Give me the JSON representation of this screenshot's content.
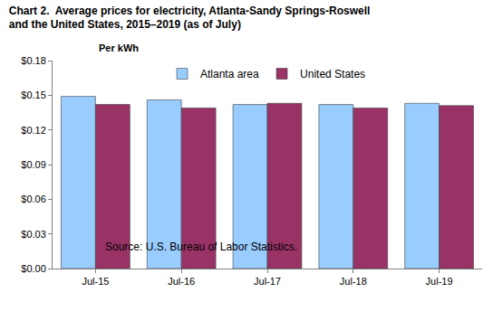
{
  "chart_data": {
    "type": "bar",
    "title": [
      "Chart 2.  Average prices for electricity, Atlanta-Sandy Springs-Roswell",
      "and the United States, 2015–2019 (as of July)"
    ],
    "y_label": "Per kWh",
    "source": "Source: U.S. Bureau of Labor Statistics.",
    "categories": [
      "Jul-15",
      "Jul-16",
      "Jul-17",
      "Jul-18",
      "Jul-19"
    ],
    "series": [
      {
        "name": "Atlanta area",
        "color": "#99ccff",
        "values": [
          0.149,
          0.146,
          0.142,
          0.142,
          0.143
        ]
      },
      {
        "name": "United States",
        "color": "#993366",
        "values": [
          0.142,
          0.139,
          0.143,
          0.139,
          0.141
        ]
      }
    ],
    "ylim": [
      0,
      0.18
    ],
    "yticks": [
      {
        "value": 0,
        "label": "$0.00"
      },
      {
        "value": 0.03,
        "label": "$0.03"
      },
      {
        "value": 0.06,
        "label": "$0.06"
      },
      {
        "value": 0.09,
        "label": "$0.09"
      },
      {
        "value": 0.12,
        "label": "$0.12"
      },
      {
        "value": 0.15,
        "label": "$0.15"
      },
      {
        "value": 0.18,
        "label": "$0.18"
      }
    ],
    "grid": false,
    "legend": "top"
  }
}
